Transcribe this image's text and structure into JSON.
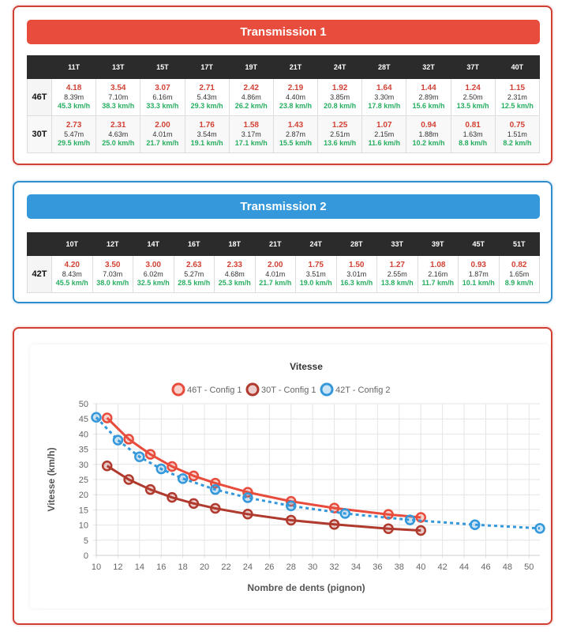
{
  "transmission1": {
    "title": "Transmission 1",
    "cogs": [
      "11T",
      "13T",
      "15T",
      "17T",
      "19T",
      "21T",
      "24T",
      "28T",
      "32T",
      "37T",
      "40T"
    ],
    "rows": [
      {
        "label": "46T",
        "cells": [
          {
            "ratio": "4.18",
            "dev": "8.39m",
            "speed": "45.3 km/h"
          },
          {
            "ratio": "3.54",
            "dev": "7.10m",
            "speed": "38.3 km/h"
          },
          {
            "ratio": "3.07",
            "dev": "6.16m",
            "speed": "33.3 km/h"
          },
          {
            "ratio": "2.71",
            "dev": "5.43m",
            "speed": "29.3 km/h"
          },
          {
            "ratio": "2.42",
            "dev": "4.86m",
            "speed": "26.2 km/h"
          },
          {
            "ratio": "2.19",
            "dev": "4.40m",
            "speed": "23.8 km/h"
          },
          {
            "ratio": "1.92",
            "dev": "3.85m",
            "speed": "20.8 km/h"
          },
          {
            "ratio": "1.64",
            "dev": "3.30m",
            "speed": "17.8 km/h"
          },
          {
            "ratio": "1.44",
            "dev": "2.89m",
            "speed": "15.6 km/h"
          },
          {
            "ratio": "1.24",
            "dev": "2.50m",
            "speed": "13.5 km/h"
          },
          {
            "ratio": "1.15",
            "dev": "2.31m",
            "speed": "12.5 km/h"
          }
        ]
      },
      {
        "label": "30T",
        "cells": [
          {
            "ratio": "2.73",
            "dev": "5.47m",
            "speed": "29.5 km/h"
          },
          {
            "ratio": "2.31",
            "dev": "4.63m",
            "speed": "25.0 km/h"
          },
          {
            "ratio": "2.00",
            "dev": "4.01m",
            "speed": "21.7 km/h"
          },
          {
            "ratio": "1.76",
            "dev": "3.54m",
            "speed": "19.1 km/h"
          },
          {
            "ratio": "1.58",
            "dev": "3.17m",
            "speed": "17.1 km/h"
          },
          {
            "ratio": "1.43",
            "dev": "2.87m",
            "speed": "15.5 km/h"
          },
          {
            "ratio": "1.25",
            "dev": "2.51m",
            "speed": "13.6 km/h"
          },
          {
            "ratio": "1.07",
            "dev": "2.15m",
            "speed": "11.6 km/h"
          },
          {
            "ratio": "0.94",
            "dev": "1.88m",
            "speed": "10.2 km/h"
          },
          {
            "ratio": "0.81",
            "dev": "1.63m",
            "speed": "8.8 km/h"
          },
          {
            "ratio": "0.75",
            "dev": "1.51m",
            "speed": "8.2 km/h"
          }
        ]
      }
    ]
  },
  "transmission2": {
    "title": "Transmission 2",
    "cogs": [
      "10T",
      "12T",
      "14T",
      "16T",
      "18T",
      "21T",
      "24T",
      "28T",
      "33T",
      "39T",
      "45T",
      "51T"
    ],
    "rows": [
      {
        "label": "42T",
        "cells": [
          {
            "ratio": "4.20",
            "dev": "8.43m",
            "speed": "45.5 km/h"
          },
          {
            "ratio": "3.50",
            "dev": "7.03m",
            "speed": "38.0 km/h"
          },
          {
            "ratio": "3.00",
            "dev": "6.02m",
            "speed": "32.5 km/h"
          },
          {
            "ratio": "2.63",
            "dev": "5.27m",
            "speed": "28.5 km/h"
          },
          {
            "ratio": "2.33",
            "dev": "4.68m",
            "speed": "25.3 km/h"
          },
          {
            "ratio": "2.00",
            "dev": "4.01m",
            "speed": "21.7 km/h"
          },
          {
            "ratio": "1.75",
            "dev": "3.51m",
            "speed": "19.0 km/h"
          },
          {
            "ratio": "1.50",
            "dev": "3.01m",
            "speed": "16.3 km/h"
          },
          {
            "ratio": "1.27",
            "dev": "2.55m",
            "speed": "13.8 km/h"
          },
          {
            "ratio": "1.08",
            "dev": "2.16m",
            "speed": "11.7 km/h"
          },
          {
            "ratio": "0.93",
            "dev": "1.87m",
            "speed": "10.1 km/h"
          },
          {
            "ratio": "0.82",
            "dev": "1.65m",
            "speed": "8.9 km/h"
          }
        ]
      }
    ]
  },
  "chart_data": {
    "type": "line",
    "title": "Vitesse",
    "xlabel": "Nombre de dents (pignon)",
    "ylabel": "Vitesse (km/h)",
    "xlim": [
      10,
      51
    ],
    "ylim": [
      0,
      50
    ],
    "xticks": [
      10,
      12,
      14,
      16,
      18,
      20,
      22,
      24,
      26,
      28,
      30,
      32,
      34,
      36,
      38,
      40,
      42,
      44,
      46,
      48,
      50
    ],
    "yticks": [
      0,
      5,
      10,
      15,
      20,
      25,
      30,
      35,
      40,
      45,
      50
    ],
    "grid": true,
    "legend_position": "top",
    "series": [
      {
        "name": "46T - Config 1",
        "color": "#e74c3c",
        "dashed": false,
        "x": [
          11,
          13,
          15,
          17,
          19,
          21,
          24,
          28,
          32,
          37,
          40
        ],
        "y": [
          45.3,
          38.3,
          33.3,
          29.3,
          26.2,
          23.8,
          20.8,
          17.8,
          15.6,
          13.5,
          12.5
        ]
      },
      {
        "name": "30T - Config 1",
        "color": "#b03a2e",
        "dashed": false,
        "x": [
          11,
          13,
          15,
          17,
          19,
          21,
          24,
          28,
          32,
          37,
          40
        ],
        "y": [
          29.5,
          25.0,
          21.7,
          19.1,
          17.1,
          15.5,
          13.6,
          11.6,
          10.2,
          8.8,
          8.2
        ]
      },
      {
        "name": "42T - Config 2",
        "color": "#3498db",
        "dashed": true,
        "x": [
          10,
          12,
          14,
          16,
          18,
          21,
          24,
          28,
          33,
          39,
          45,
          51
        ],
        "y": [
          45.5,
          38.0,
          32.5,
          28.5,
          25.3,
          21.7,
          19.0,
          16.3,
          13.8,
          11.7,
          10.1,
          8.9
        ]
      }
    ]
  }
}
